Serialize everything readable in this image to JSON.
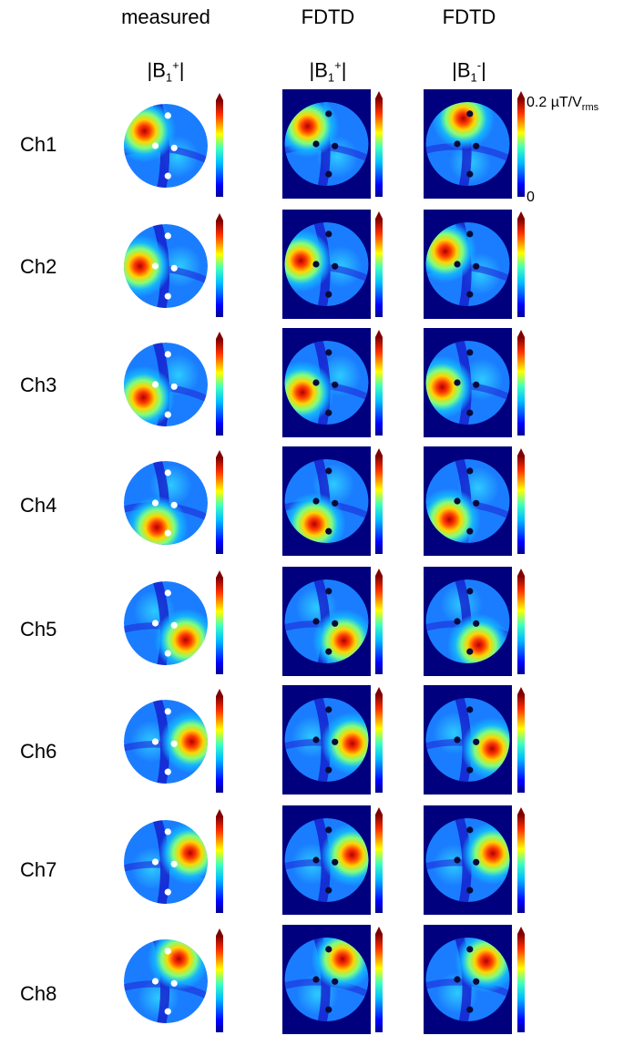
{
  "columns": [
    {
      "header": "measured",
      "quantity": "|B",
      "sub": "1",
      "sup": "+",
      "close": "|"
    },
    {
      "header": "FDTD",
      "quantity": "|B",
      "sub": "1",
      "sup": "+",
      "close": "|"
    },
    {
      "header": "FDTD",
      "quantity": "|B",
      "sub": "1",
      "sup": "-",
      "close": "|"
    }
  ],
  "rows": [
    "Ch1",
    "Ch2",
    "Ch3",
    "Ch4",
    "Ch5",
    "Ch6",
    "Ch7",
    "Ch8"
  ],
  "colorbar": {
    "max_label": "0.2 µT/V",
    "max_sub": "rms",
    "min_label": "0",
    "colormap": "jet"
  },
  "colors": {
    "background_panel": "#00007f",
    "marker_measured": "#ffffff",
    "marker_fdtd": "#0a0a3a"
  }
}
